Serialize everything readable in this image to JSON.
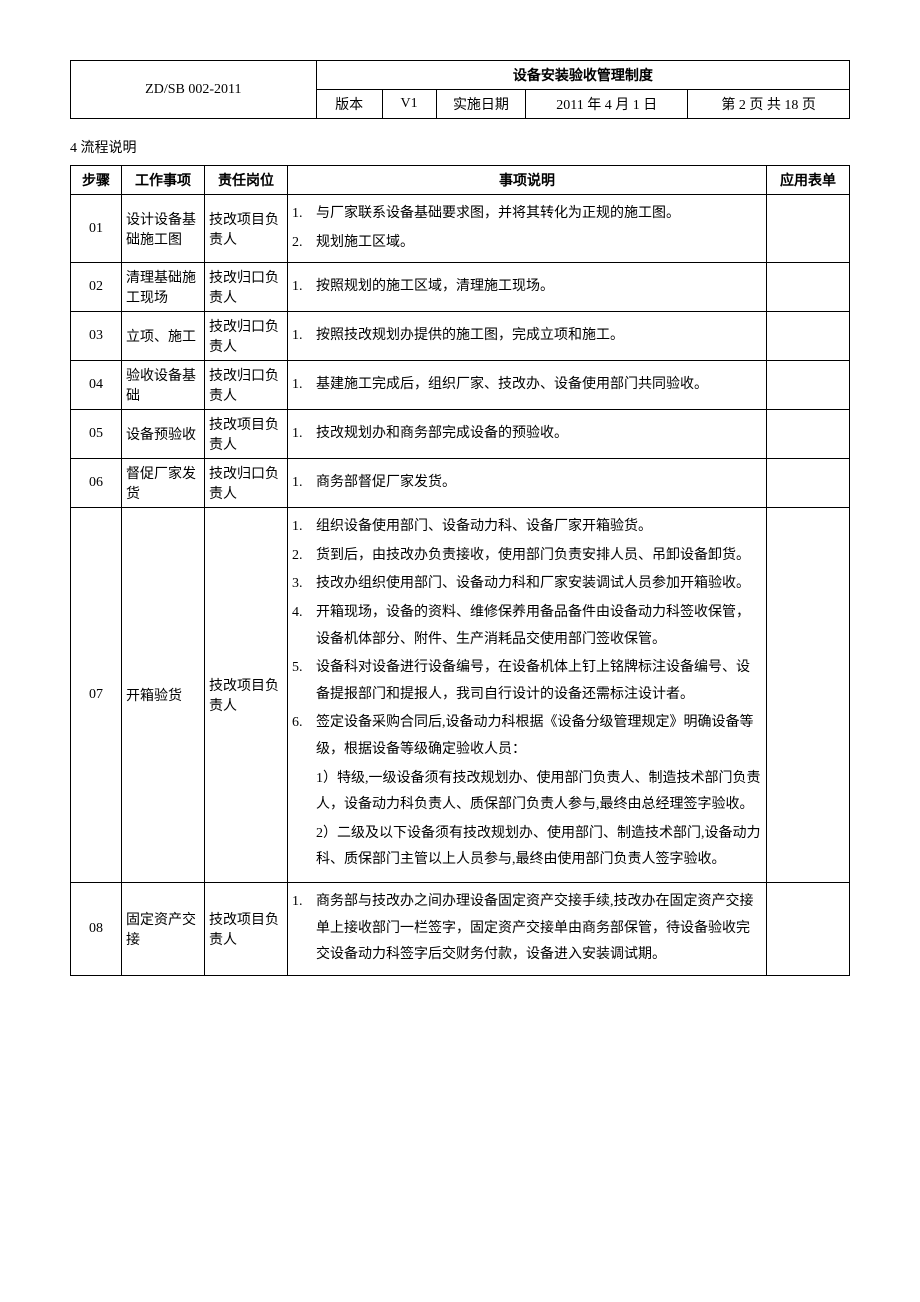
{
  "header": {
    "title": "设备安装验收管理制度",
    "doc_code": "ZD/SB 002-2011",
    "version_label": "版本",
    "version_value": "V1",
    "date_label": "实施日期",
    "date_value": "2011 年 4 月 1 日",
    "page_info": "第 2 页  共 18 页"
  },
  "section_heading": "4  流程说明",
  "columns": {
    "step": "步骤",
    "task": "工作事项",
    "role": "责任岗位",
    "desc": "事项说明",
    "form": "应用表单"
  },
  "rows": [
    {
      "step": "01",
      "task": "设计设备基础施工图",
      "role": "技改项目负责人",
      "items": [
        "与厂家联系设备基础要求图，并将其转化为正规的施工图。",
        "规划施工区域。"
      ],
      "form": ""
    },
    {
      "step": "02",
      "task": "清理基础施工现场",
      "role": "技改归口负责人",
      "items": [
        "按照规划的施工区域，清理施工现场。"
      ],
      "form": ""
    },
    {
      "step": "03",
      "task": "立项、施工",
      "role": "技改归口负责人",
      "items": [
        "按照技改规划办提供的施工图，完成立项和施工。"
      ],
      "form": ""
    },
    {
      "step": "04",
      "task": "验收设备基础",
      "role": "技改归口负责人",
      "items": [
        "基建施工完成后，组织厂家、技改办、设备使用部门共同验收。"
      ],
      "form": ""
    },
    {
      "step": "05",
      "task": "设备预验收",
      "role": "技改项目负责人",
      "items": [
        "技改规划办和商务部完成设备的预验收。"
      ],
      "form": ""
    },
    {
      "step": "06",
      "task": "督促厂家发货",
      "role": "技改归口负责人",
      "items": [
        "商务部督促厂家发货。"
      ],
      "form": ""
    },
    {
      "step": "07",
      "task": "开箱验货",
      "role": "技改项目负责人",
      "items": [
        "组织设备使用部门、设备动力科、设备厂家开箱验货。",
        "货到后，由技改办负责接收，使用部门负责安排人员、吊卸设备卸货。",
        "技改办组织使用部门、设备动力科和厂家安装调试人员参加开箱验收。",
        "开箱现场，设备的资料、维修保养用备品备件由设备动力科签收保管，设备机体部分、附件、生产消耗品交使用部门签收保管。",
        "设备科对设备进行设备编号，在设备机体上钉上铭牌标注设备编号、设备提报部门和提报人，我司自行设计的设备还需标注设计者。"
      ],
      "item6_main": "签定设备采购合同后,设备动力科根据《设备分级管理规定》明确设备等级，根据设备等级确定验收人员：",
      "item6_sub1": "1）特级,一级设备须有技改规划办、使用部门负责人、制造技术部门负责人，设备动力科负责人、质保部门负责人参与,最终由总经理签字验收。",
      "item6_sub2": "2）二级及以下设备须有技改规划办、使用部门、制造技术部门,设备动力科、质保部门主管以上人员参与,最终由使用部门负责人签字验收。",
      "form": ""
    },
    {
      "step": "08",
      "task": "固定资产交接",
      "role": "技改项目负责人",
      "items": [
        "商务部与技改办之间办理设备固定资产交接手续,技改办在固定资产交接单上接收部门一栏签字，固定资产交接单由商务部保管，待设备验收完交设备动力科签字后交财务付款，设备进入安装调试期。"
      ],
      "form": ""
    }
  ]
}
